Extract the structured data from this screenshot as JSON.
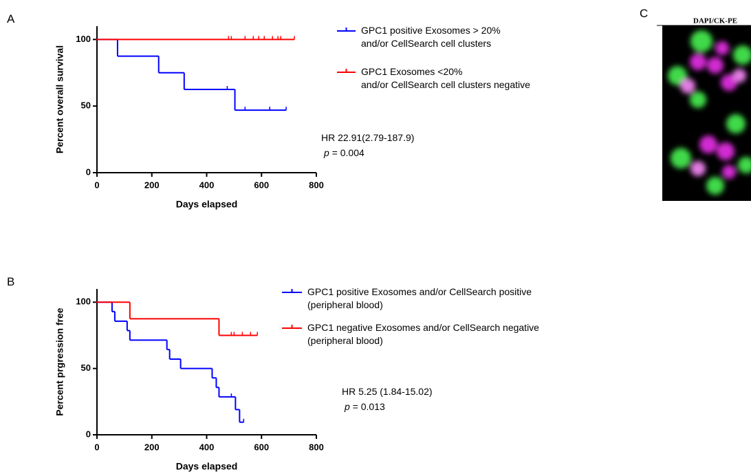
{
  "panels": [
    "A",
    "B",
    "C"
  ],
  "image_label": "DAPI/CK-PE",
  "chart_data": [
    {
      "type": "step",
      "ylabel": "Percent overall survival",
      "xlabel": "Days elapsed",
      "xlim": [
        0,
        800
      ],
      "ylim": [
        0,
        110
      ],
      "xticks": [
        0,
        200,
        400,
        600,
        800
      ],
      "yticks": [
        0,
        50,
        100
      ],
      "annotation": "HR 22.91(2.79-187.9)",
      "p_label": "p",
      "p_text": "= 0.004",
      "series": [
        {
          "name": "GPC1 positive Exosomes > 20%\nand/or CellSearch cell clusters",
          "color": "#0000ff",
          "x": [
            0,
            75,
            225,
            318,
            503,
            690
          ],
          "values": [
            100,
            87.5,
            75,
            62.5,
            46.9,
            46.9
          ],
          "censor_x": [
            475,
            540,
            630,
            690
          ],
          "censor_values": [
            62.5,
            46.9,
            46.9,
            46.9
          ]
        },
        {
          "name": "GPC1 Exosomes <20%\nand/or CellSearch cell clusters negative",
          "color": "#ff0000",
          "x": [
            0,
            720
          ],
          "values": [
            100,
            100
          ],
          "censor_x": [
            480,
            490,
            540,
            570,
            590,
            610,
            640,
            660,
            670,
            720
          ],
          "censor_values": [
            100,
            100,
            100,
            100,
            100,
            100,
            100,
            100,
            100,
            100
          ]
        }
      ]
    },
    {
      "type": "step",
      "ylabel": "Percent prgression free",
      "xlabel": "Days elapsed",
      "xlim": [
        0,
        800
      ],
      "ylim": [
        0,
        110
      ],
      "xticks": [
        0,
        200,
        400,
        600,
        800
      ],
      "yticks": [
        0,
        50,
        100
      ],
      "annotation": "HR 5.25 (1.84-15.02)",
      "p_label": "p",
      "p_text": "= 0.013",
      "series": [
        {
          "name": "GPC1 positive Exosomes and/or CellSearch positive\n(peripheral blood)",
          "color": "#0000ff",
          "x": [
            0,
            55,
            65,
            110,
            120,
            255,
            265,
            305,
            420,
            435,
            445,
            505,
            520,
            535
          ],
          "values": [
            100,
            92.9,
            85.7,
            78.6,
            71.4,
            64.3,
            57.1,
            50,
            42.9,
            35.7,
            28.6,
            19,
            9.5,
            9.5
          ],
          "censor_x": [
            490,
            535
          ],
          "censor_values": [
            28.6,
            9.5
          ]
        },
        {
          "name": "GPC1 negative Exosomes and/or CellSearch negative\n(peripheral blood)",
          "color": "#ff0000",
          "x": [
            0,
            120,
            445,
            585
          ],
          "values": [
            100,
            87.5,
            75,
            75
          ],
          "censor_x": [
            490,
            500,
            530,
            560,
            585
          ],
          "censor_values": [
            75,
            75,
            75,
            75,
            75
          ]
        }
      ]
    }
  ]
}
